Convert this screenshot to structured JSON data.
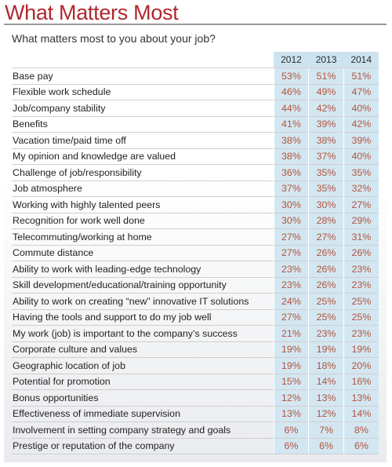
{
  "title": "What Matters Most",
  "subtitle": "What matters most to you about your job?",
  "colors": {
    "title": "#b0282e",
    "value_text": "#b5533a",
    "column_fill": "#d3e7f2"
  },
  "chart_data": {
    "type": "table",
    "columns": [
      "2012",
      "2013",
      "2014"
    ],
    "rows": [
      {
        "label": "Base pay",
        "values": [
          "53%",
          "51%",
          "51%"
        ]
      },
      {
        "label": "Flexible work schedule",
        "values": [
          "46%",
          "49%",
          "47%"
        ]
      },
      {
        "label": "Job/company stability",
        "values": [
          "44%",
          "42%",
          "40%"
        ]
      },
      {
        "label": "Benefits",
        "values": [
          "41%",
          "39%",
          "42%"
        ]
      },
      {
        "label": "Vacation time/paid time off",
        "values": [
          "38%",
          "38%",
          "39%"
        ]
      },
      {
        "label": "My opinion and knowledge are valued",
        "values": [
          "38%",
          "37%",
          "40%"
        ]
      },
      {
        "label": "Challenge of job/responsibility",
        "values": [
          "36%",
          "35%",
          "35%"
        ]
      },
      {
        "label": "Job atmosphere",
        "values": [
          "37%",
          "35%",
          "32%"
        ]
      },
      {
        "label": "Working with highly talented peers",
        "values": [
          "30%",
          "30%",
          "27%"
        ]
      },
      {
        "label": "Recognition for work well done",
        "values": [
          "30%",
          "28%",
          "29%"
        ]
      },
      {
        "label": "Telecommuting/working at home",
        "values": [
          "27%",
          "27%",
          "31%"
        ]
      },
      {
        "label": "Commute distance",
        "values": [
          "27%",
          "26%",
          "26%"
        ]
      },
      {
        "label": "Ability to work with leading-edge technology",
        "values": [
          "23%",
          "26%",
          "23%"
        ]
      },
      {
        "label": "Skill development/educational/training opportunity",
        "values": [
          "23%",
          "26%",
          "23%"
        ]
      },
      {
        "label": "Ability to work on creating “new” innovative IT solutions",
        "values": [
          "24%",
          "25%",
          "25%"
        ]
      },
      {
        "label": "Having the tools and support to do my job well",
        "values": [
          "27%",
          "25%",
          "25%"
        ]
      },
      {
        "label": "My work (job) is important to the company’s success",
        "values": [
          "21%",
          "23%",
          "23%"
        ]
      },
      {
        "label": "Corporate culture and values",
        "values": [
          "19%",
          "19%",
          "19%"
        ]
      },
      {
        "label": "Geographic location of job",
        "values": [
          "19%",
          "18%",
          "20%"
        ]
      },
      {
        "label": "Potential for promotion",
        "values": [
          "15%",
          "14%",
          "16%"
        ]
      },
      {
        "label": "Bonus opportunities",
        "values": [
          "12%",
          "13%",
          "13%"
        ]
      },
      {
        "label": "Effectiveness of immediate supervision",
        "values": [
          "13%",
          "12%",
          "14%"
        ]
      },
      {
        "label": "Involvement in setting company strategy and goals",
        "values": [
          "6%",
          "7%",
          "8%"
        ]
      },
      {
        "label": "Prestige or reputation of the company",
        "values": [
          "6%",
          "6%",
          "6%"
        ]
      }
    ]
  }
}
